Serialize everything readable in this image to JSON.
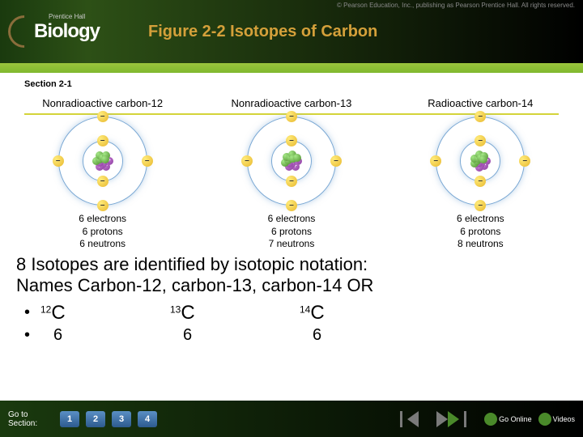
{
  "copyright": "© Pearson Education, Inc., publishing as Pearson Prentice Hall. All rights reserved.",
  "logo": {
    "brand": "Biology",
    "publisher": "Prentice Hall"
  },
  "title": "Figure 2-2 Isotopes of Carbon",
  "section_label": "Section 2-1",
  "isotopes": [
    {
      "name": "Nonradioactive carbon-12",
      "electrons": "6 electrons",
      "protons": "6 protons",
      "neutrons": "6 neutrons",
      "neutron_count": 6
    },
    {
      "name": "Nonradioactive carbon-13",
      "electrons": "6 electrons",
      "protons": "6 protons",
      "neutrons": "7 neutrons",
      "neutron_count": 7
    },
    {
      "name": "Radioactive carbon-14",
      "electrons": "6 electrons",
      "protons": "6 protons",
      "neutrons": "8 neutrons",
      "neutron_count": 8
    }
  ],
  "main_text": {
    "line1": "8   Isotopes are identified by isotopic notation:",
    "line2": "Names   Carbon-12, carbon-13, carbon-14  OR"
  },
  "notation_rows": [
    {
      "bullet": "•",
      "items": [
        {
          "sup": "12",
          "el": "C"
        },
        {
          "sup": "13",
          "el": "C"
        },
        {
          "sup": "14",
          "el": "C"
        }
      ]
    },
    {
      "bullet": "•",
      "items": [
        {
          "sub": "6"
        },
        {
          "sub": "6"
        },
        {
          "sub": "6"
        }
      ]
    }
  ],
  "footer": {
    "goto": "Go to Section:",
    "buttons": [
      "1",
      "2",
      "3",
      "4"
    ],
    "resources": [
      {
        "label": "Go Online"
      },
      {
        "label": "Videos"
      }
    ]
  },
  "colors": {
    "title": "#d4a03a",
    "header_bg": "#000000",
    "green_band": "#9bc53d",
    "proton": "#8a3a9e",
    "neutron": "#4a8a2a",
    "electron": "#e8b82e",
    "orbit": "#7aa8d4",
    "button": "#2d5a8e"
  }
}
